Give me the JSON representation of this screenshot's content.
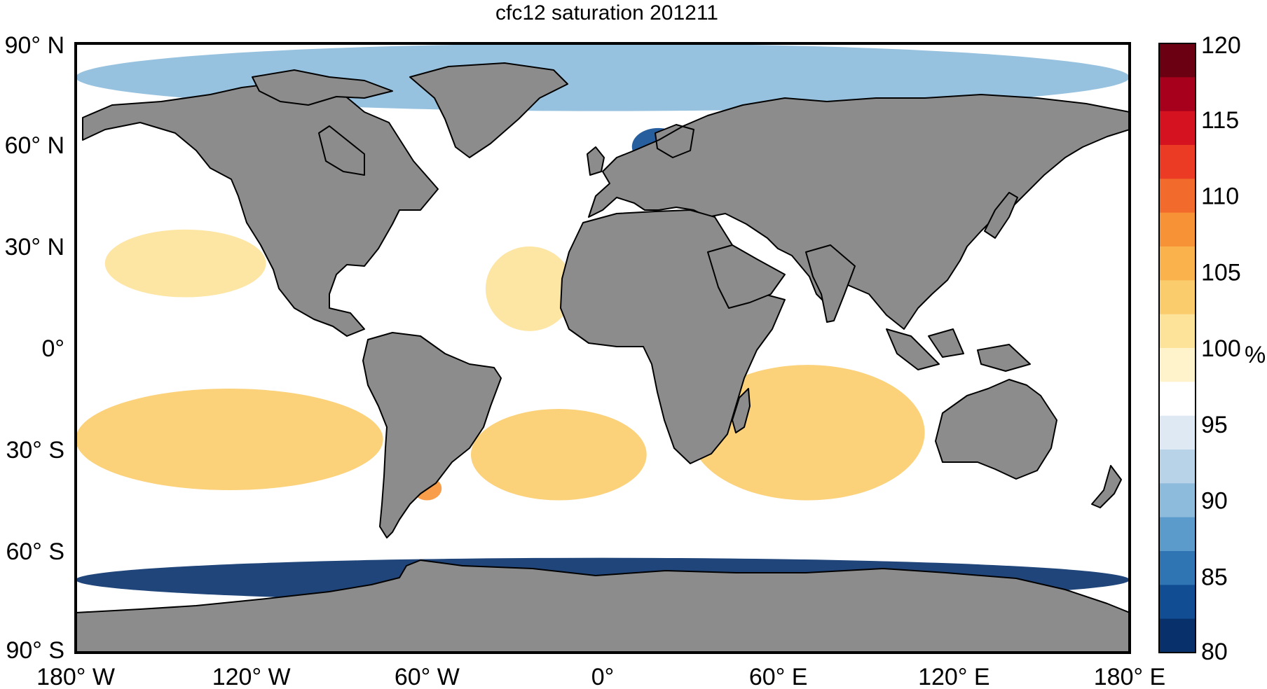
{
  "title": "cfc12 saturation 201211",
  "map": {
    "projection": "equirectangular",
    "lon_range": [
      -180,
      180
    ],
    "lat_range": [
      -90,
      90
    ],
    "ocean_field": "cfc12 saturation (%)",
    "land_color": "#8c8c8c",
    "coastline_color": "#000000"
  },
  "axes": {
    "y_ticks": [
      {
        "value": 90,
        "label": "90",
        "hemi": "N"
      },
      {
        "value": 60,
        "label": "60",
        "hemi": "N"
      },
      {
        "value": 30,
        "label": "30",
        "hemi": "N"
      },
      {
        "value": 0,
        "label": "0",
        "hemi": ""
      },
      {
        "value": -30,
        "label": "30",
        "hemi": "S"
      },
      {
        "value": -60,
        "label": "60",
        "hemi": "S"
      },
      {
        "value": -90,
        "label": "90",
        "hemi": "S"
      }
    ],
    "x_ticks": [
      {
        "value": -180,
        "label": "180",
        "hemi": "W"
      },
      {
        "value": -120,
        "label": "120",
        "hemi": "W"
      },
      {
        "value": -60,
        "label": "60",
        "hemi": "W"
      },
      {
        "value": 0,
        "label": "0",
        "hemi": ""
      },
      {
        "value": 60,
        "label": "60",
        "hemi": "E"
      },
      {
        "value": 120,
        "label": "120",
        "hemi": "E"
      },
      {
        "value": 180,
        "label": "180",
        "hemi": "E"
      }
    ],
    "degree_symbol": "°"
  },
  "colorbar": {
    "min": 80,
    "max": 120,
    "ticks": [
      "120",
      "115",
      "110",
      "105",
      "100",
      "95",
      "90",
      "85",
      "80"
    ],
    "unit": "%",
    "colors_high_to_low": [
      "#6b0012",
      "#a7001c",
      "#d51220",
      "#ec3b25",
      "#f26a2c",
      "#f79236",
      "#f9b24c",
      "#fbcc6c",
      "#fde29a",
      "#fff3cc",
      "#ffffff",
      "#dfe9f4",
      "#b8d3e8",
      "#8cbbdc",
      "#5b9bcb",
      "#2f74b3",
      "#104d93",
      "#08316b"
    ]
  },
  "regions": [
    {
      "name": "north-pacific-subtropical",
      "lon": [
        -170,
        -115
      ],
      "lat": [
        15,
        35
      ],
      "level": 102
    },
    {
      "name": "south-pacific-subtropical",
      "lon": [
        -180,
        -75
      ],
      "lat": [
        -42,
        -12
      ],
      "level": 104
    },
    {
      "name": "south-atlantic-subtropical",
      "lon": [
        -45,
        15
      ],
      "lat": [
        -45,
        -18
      ],
      "level": 103
    },
    {
      "name": "indian-subtropical",
      "lon": [
        30,
        110
      ],
      "lat": [
        -45,
        -5
      ],
      "level": 103
    },
    {
      "name": "north-atlantic-subtropical",
      "lon": [
        -40,
        -10
      ],
      "lat": [
        5,
        30
      ],
      "level": 102
    },
    {
      "name": "patagonian-shelf",
      "lon": [
        -65,
        -55
      ],
      "lat": [
        -45,
        -38
      ],
      "level": 108
    },
    {
      "name": "southern-ocean-band",
      "lon": [
        -180,
        180
      ],
      "lat": [
        -62,
        -50
      ],
      "level": 96
    },
    {
      "name": "antarctic-margin",
      "lon": [
        -180,
        180
      ],
      "lat": [
        -75,
        -62
      ],
      "level": 82
    },
    {
      "name": "arctic-ocean",
      "lon": [
        -180,
        180
      ],
      "lat": [
        70,
        90
      ],
      "level": 91
    },
    {
      "name": "baltic-sea",
      "lon": [
        10,
        28
      ],
      "lat": [
        54,
        65
      ],
      "level": 83
    },
    {
      "name": "north-pacific-subpolar",
      "lon": [
        140,
        180
      ],
      "lat": [
        40,
        60
      ],
      "level": 96
    }
  ]
}
